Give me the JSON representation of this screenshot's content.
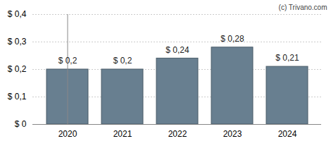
{
  "chart_data": {
    "type": "bar",
    "annotation": "(c) Trivano.com",
    "categories": [
      "2020",
      "2021",
      "2022",
      "2023",
      "2024"
    ],
    "values": [
      0.2,
      0.2,
      0.24,
      0.28,
      0.21
    ],
    "value_labels": [
      "$ 0,2",
      "$ 0,2",
      "$ 0,24",
      "$ 0,28",
      "$ 0,21"
    ],
    "data_labels": true,
    "color": "#687f90",
    "ylim": [
      0,
      0.4
    ],
    "yticks": [
      {
        "value": 0,
        "label": "$ 0"
      },
      {
        "value": 0.1,
        "label": "$ 0,1"
      },
      {
        "value": 0.2,
        "label": "$ 0,2"
      },
      {
        "value": 0.3,
        "label": "$ 0,3"
      },
      {
        "value": 0.4,
        "label": "$ 0,4"
      }
    ],
    "grid": true
  }
}
